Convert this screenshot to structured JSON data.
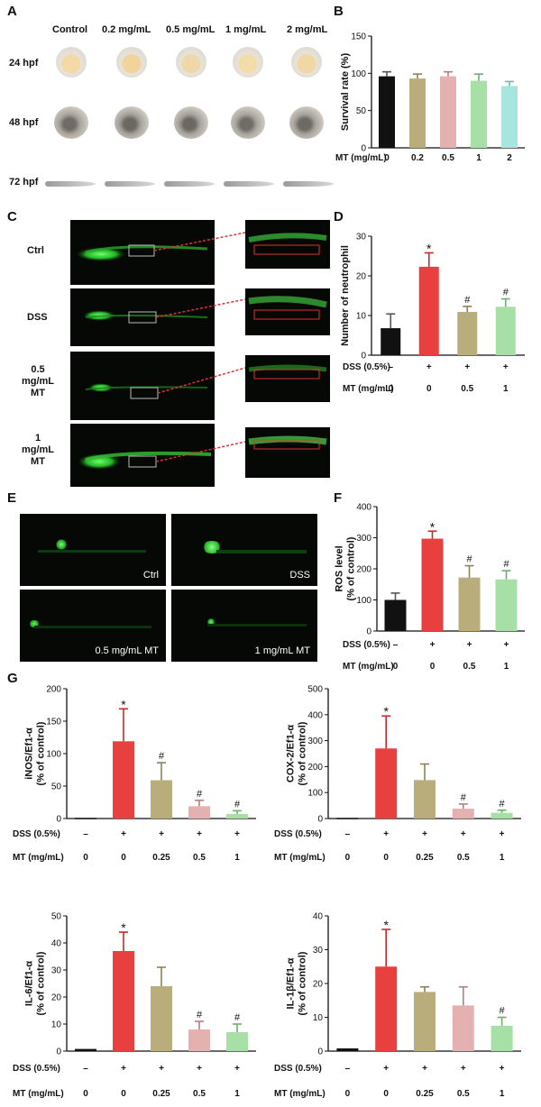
{
  "panels": {
    "A": "A",
    "B": "B",
    "C": "C",
    "D": "D",
    "E": "E",
    "F": "F",
    "G": "G"
  },
  "panel_a": {
    "columns": [
      "Control",
      "0.2 mg/mL",
      "0.5 mg/mL",
      "1 mg/mL",
      "2 mg/mL"
    ],
    "rows": [
      "24 hpf",
      "48 hpf",
      "72 hpf"
    ]
  },
  "panel_c": {
    "rows": [
      "Ctrl",
      "DSS",
      "0.5\nmg/mL\nMT",
      "1\nmg/mL\nMT"
    ]
  },
  "panel_e": {
    "labels": [
      "Ctrl",
      "DSS",
      "0.5 mg/mL MT",
      "1 mg/mL MT"
    ]
  },
  "colors": {
    "black": "#111111",
    "red": "#e8403e",
    "olive": "#b9ad7c",
    "pink": "#e5b1b0",
    "green": "#a6e0a6",
    "cyan": "#a6e6de",
    "error": "#555555",
    "errorRed": "#c62a2a",
    "errorOlive": "#8d8254"
  },
  "chart_data": [
    {
      "id": "B",
      "type": "bar",
      "categories": [
        "0",
        "0.2",
        "0.5",
        "1",
        "2"
      ],
      "values": [
        96,
        93,
        96,
        90,
        83
      ],
      "errors": [
        6,
        6,
        6,
        9,
        6
      ],
      "ylabel": "Survival rate (%)",
      "ylim": [
        0,
        150
      ],
      "yticks": [
        0,
        50,
        100,
        150
      ],
      "row_labels": [
        "MT (mg/mL)"
      ],
      "rows": [
        [
          "0",
          "0.2",
          "0.5",
          "1",
          "2"
        ]
      ],
      "markers": [
        "",
        "",
        "",
        "",
        ""
      ],
      "colors": [
        "black",
        "olive",
        "pink",
        "green",
        "cyan"
      ]
    },
    {
      "id": "D",
      "type": "bar",
      "categories": [
        "0",
        "0",
        "0.5",
        "1"
      ],
      "values": [
        6.8,
        22.3,
        10.9,
        12.2
      ],
      "errors": [
        3.6,
        3.5,
        1.4,
        2.0
      ],
      "ylabel": "Number of neutrophil",
      "ylim": [
        0,
        30
      ],
      "yticks": [
        0,
        10,
        20,
        30
      ],
      "row_labels": [
        "DSS (0.5%)",
        "MT (mg/mL)"
      ],
      "rows": [
        [
          "–",
          "+",
          "+",
          "+"
        ],
        [
          "0",
          "0",
          "0.5",
          "1"
        ]
      ],
      "markers": [
        "",
        "*",
        "#",
        "#"
      ],
      "colors": [
        "black",
        "red",
        "olive",
        "green"
      ]
    },
    {
      "id": "F",
      "type": "bar",
      "categories": [
        "0",
        "0",
        "0.5",
        "1"
      ],
      "values": [
        100,
        297,
        172,
        166
      ],
      "errors": [
        22,
        24,
        38,
        28
      ],
      "ylabel": "ROS level\n(% of control)",
      "ylim": [
        0,
        400
      ],
      "yticks": [
        0,
        100,
        200,
        300,
        400
      ],
      "row_labels": [
        "DSS (0.5%)",
        "MT (mg/mL)"
      ],
      "rows": [
        [
          "–",
          "+",
          "+",
          "+"
        ],
        [
          "0",
          "0",
          "0.5",
          "1"
        ]
      ],
      "markers": [
        "",
        "*",
        "#",
        "#"
      ],
      "colors": [
        "black",
        "red",
        "olive",
        "green"
      ]
    },
    {
      "id": "G1",
      "type": "bar",
      "categories": [
        "0",
        "0",
        "0.25",
        "0.5",
        "1"
      ],
      "values": [
        0,
        119,
        59,
        19,
        7
      ],
      "errors": [
        0,
        50,
        27,
        9,
        5
      ],
      "ylabel": "iNOS/Ef1-α\n(% of control)",
      "ylim": [
        0,
        200
      ],
      "yticks": [
        0,
        50,
        100,
        150,
        200
      ],
      "row_labels": [
        "DSS (0.5%)",
        "MT (mg/mL)"
      ],
      "rows": [
        [
          "–",
          "+",
          "+",
          "+",
          "+"
        ],
        [
          "0",
          "0",
          "0.25",
          "0.5",
          "1"
        ]
      ],
      "markers": [
        "",
        "*",
        "#",
        "#",
        "#"
      ],
      "colors": [
        "black",
        "red",
        "olive",
        "pink",
        "green"
      ]
    },
    {
      "id": "G2",
      "type": "bar",
      "categories": [
        "0",
        "0",
        "0.25",
        "0.5",
        "1"
      ],
      "values": [
        0,
        270,
        148,
        38,
        22
      ],
      "errors": [
        0,
        125,
        62,
        18,
        10
      ],
      "ylabel": "COX-2/Ef1-α\n(% of control)",
      "ylim": [
        0,
        500
      ],
      "yticks": [
        0,
        100,
        200,
        300,
        400,
        500
      ],
      "row_labels": [
        "DSS (0.5%)",
        "MT (mg/mL)"
      ],
      "rows": [
        [
          "–",
          "+",
          "+",
          "+",
          "+"
        ],
        [
          "0",
          "0",
          "0.25",
          "0.5",
          "1"
        ]
      ],
      "markers": [
        "",
        "*",
        "",
        "#",
        "#"
      ],
      "colors": [
        "black",
        "red",
        "olive",
        "pink",
        "green"
      ]
    },
    {
      "id": "G3",
      "type": "bar",
      "categories": [
        "0",
        "0",
        "0.25",
        "0.5",
        "1"
      ],
      "values": [
        0.8,
        37,
        24,
        8,
        7
      ],
      "errors": [
        0,
        7,
        7,
        3,
        3
      ],
      "ylabel": "IL-6/Ef1-α\n(% of control)",
      "ylim": [
        0,
        50
      ],
      "yticks": [
        0,
        10,
        20,
        30,
        40,
        50
      ],
      "row_labels": [
        "DSS (0.5%)",
        "MT (mg/mL)"
      ],
      "rows": [
        [
          "–",
          "+",
          "+",
          "+",
          "+"
        ],
        [
          "0",
          "0",
          "0.25",
          "0.5",
          "1"
        ]
      ],
      "markers": [
        "",
        "*",
        "",
        "#",
        "#"
      ],
      "colors": [
        "black",
        "red",
        "olive",
        "pink",
        "green"
      ]
    },
    {
      "id": "G4",
      "type": "bar",
      "categories": [
        "0",
        "0",
        "0.25",
        "0.5",
        "1"
      ],
      "values": [
        0.8,
        25,
        17.5,
        13.5,
        7.5
      ],
      "errors": [
        0,
        11,
        1.5,
        5.5,
        2.5
      ],
      "ylabel": "IL-1β/Ef1-α\n(% of control)",
      "ylim": [
        0,
        40
      ],
      "yticks": [
        0,
        10,
        20,
        30,
        40
      ],
      "row_labels": [
        "DSS (0.5%)",
        "MT (mg/mL)"
      ],
      "rows": [
        [
          "–",
          "+",
          "+",
          "+",
          "+"
        ],
        [
          "0",
          "0",
          "0.25",
          "0.5",
          "1"
        ]
      ],
      "markers": [
        "",
        "*",
        "",
        "",
        "#"
      ],
      "colors": [
        "black",
        "red",
        "olive",
        "pink",
        "green"
      ]
    }
  ]
}
